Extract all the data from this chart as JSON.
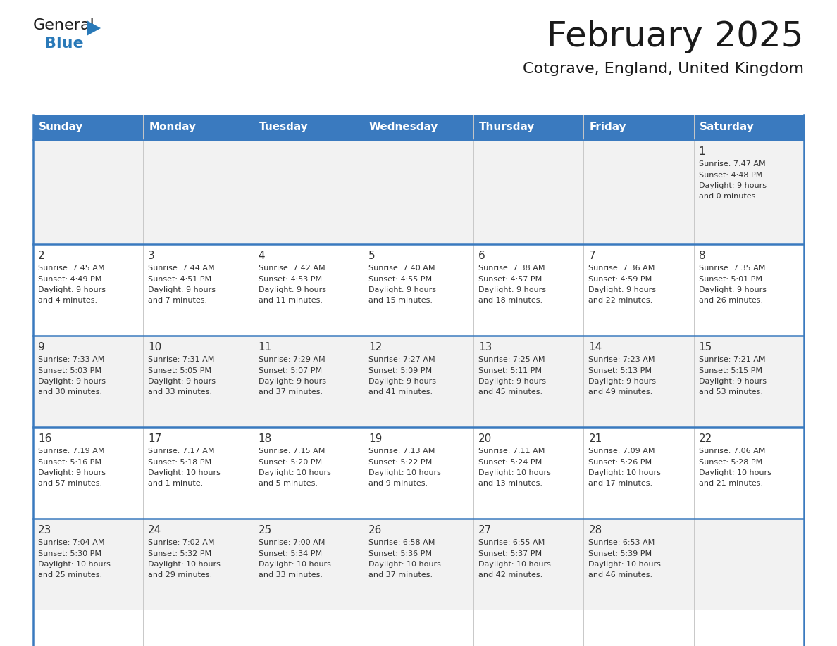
{
  "title": "February 2025",
  "subtitle": "Cotgrave, England, United Kingdom",
  "header_bg": "#3a7abf",
  "header_text": "#ffffff",
  "cell_bg_odd": "#f2f2f2",
  "cell_bg_even": "#ffffff",
  "border_color": "#3a7abf",
  "text_color": "#333333",
  "days_of_week": [
    "Sunday",
    "Monday",
    "Tuesday",
    "Wednesday",
    "Thursday",
    "Friday",
    "Saturday"
  ],
  "calendar_data": [
    [
      {
        "day": "",
        "info": ""
      },
      {
        "day": "",
        "info": ""
      },
      {
        "day": "",
        "info": ""
      },
      {
        "day": "",
        "info": ""
      },
      {
        "day": "",
        "info": ""
      },
      {
        "day": "",
        "info": ""
      },
      {
        "day": "1",
        "info": "Sunrise: 7:47 AM\nSunset: 4:48 PM\nDaylight: 9 hours\nand 0 minutes."
      }
    ],
    [
      {
        "day": "2",
        "info": "Sunrise: 7:45 AM\nSunset: 4:49 PM\nDaylight: 9 hours\nand 4 minutes."
      },
      {
        "day": "3",
        "info": "Sunrise: 7:44 AM\nSunset: 4:51 PM\nDaylight: 9 hours\nand 7 minutes."
      },
      {
        "day": "4",
        "info": "Sunrise: 7:42 AM\nSunset: 4:53 PM\nDaylight: 9 hours\nand 11 minutes."
      },
      {
        "day": "5",
        "info": "Sunrise: 7:40 AM\nSunset: 4:55 PM\nDaylight: 9 hours\nand 15 minutes."
      },
      {
        "day": "6",
        "info": "Sunrise: 7:38 AM\nSunset: 4:57 PM\nDaylight: 9 hours\nand 18 minutes."
      },
      {
        "day": "7",
        "info": "Sunrise: 7:36 AM\nSunset: 4:59 PM\nDaylight: 9 hours\nand 22 minutes."
      },
      {
        "day": "8",
        "info": "Sunrise: 7:35 AM\nSunset: 5:01 PM\nDaylight: 9 hours\nand 26 minutes."
      }
    ],
    [
      {
        "day": "9",
        "info": "Sunrise: 7:33 AM\nSunset: 5:03 PM\nDaylight: 9 hours\nand 30 minutes."
      },
      {
        "day": "10",
        "info": "Sunrise: 7:31 AM\nSunset: 5:05 PM\nDaylight: 9 hours\nand 33 minutes."
      },
      {
        "day": "11",
        "info": "Sunrise: 7:29 AM\nSunset: 5:07 PM\nDaylight: 9 hours\nand 37 minutes."
      },
      {
        "day": "12",
        "info": "Sunrise: 7:27 AM\nSunset: 5:09 PM\nDaylight: 9 hours\nand 41 minutes."
      },
      {
        "day": "13",
        "info": "Sunrise: 7:25 AM\nSunset: 5:11 PM\nDaylight: 9 hours\nand 45 minutes."
      },
      {
        "day": "14",
        "info": "Sunrise: 7:23 AM\nSunset: 5:13 PM\nDaylight: 9 hours\nand 49 minutes."
      },
      {
        "day": "15",
        "info": "Sunrise: 7:21 AM\nSunset: 5:15 PM\nDaylight: 9 hours\nand 53 minutes."
      }
    ],
    [
      {
        "day": "16",
        "info": "Sunrise: 7:19 AM\nSunset: 5:16 PM\nDaylight: 9 hours\nand 57 minutes."
      },
      {
        "day": "17",
        "info": "Sunrise: 7:17 AM\nSunset: 5:18 PM\nDaylight: 10 hours\nand 1 minute."
      },
      {
        "day": "18",
        "info": "Sunrise: 7:15 AM\nSunset: 5:20 PM\nDaylight: 10 hours\nand 5 minutes."
      },
      {
        "day": "19",
        "info": "Sunrise: 7:13 AM\nSunset: 5:22 PM\nDaylight: 10 hours\nand 9 minutes."
      },
      {
        "day": "20",
        "info": "Sunrise: 7:11 AM\nSunset: 5:24 PM\nDaylight: 10 hours\nand 13 minutes."
      },
      {
        "day": "21",
        "info": "Sunrise: 7:09 AM\nSunset: 5:26 PM\nDaylight: 10 hours\nand 17 minutes."
      },
      {
        "day": "22",
        "info": "Sunrise: 7:06 AM\nSunset: 5:28 PM\nDaylight: 10 hours\nand 21 minutes."
      }
    ],
    [
      {
        "day": "23",
        "info": "Sunrise: 7:04 AM\nSunset: 5:30 PM\nDaylight: 10 hours\nand 25 minutes."
      },
      {
        "day": "24",
        "info": "Sunrise: 7:02 AM\nSunset: 5:32 PM\nDaylight: 10 hours\nand 29 minutes."
      },
      {
        "day": "25",
        "info": "Sunrise: 7:00 AM\nSunset: 5:34 PM\nDaylight: 10 hours\nand 33 minutes."
      },
      {
        "day": "26",
        "info": "Sunrise: 6:58 AM\nSunset: 5:36 PM\nDaylight: 10 hours\nand 37 minutes."
      },
      {
        "day": "27",
        "info": "Sunrise: 6:55 AM\nSunset: 5:37 PM\nDaylight: 10 hours\nand 42 minutes."
      },
      {
        "day": "28",
        "info": "Sunrise: 6:53 AM\nSunset: 5:39 PM\nDaylight: 10 hours\nand 46 minutes."
      },
      {
        "day": "",
        "info": ""
      }
    ]
  ],
  "logo_color_general": "#1a1a1a",
  "logo_color_blue": "#2979b8",
  "logo_triangle_color": "#2979b8",
  "fig_width": 11.88,
  "fig_height": 9.18,
  "dpi": 100
}
